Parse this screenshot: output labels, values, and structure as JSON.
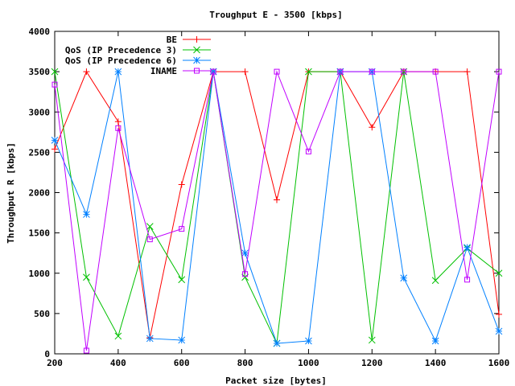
{
  "chart_data": {
    "type": "line",
    "title": "Troughput E - 3500 [kbps]",
    "xlabel": "Packet size [bytes]",
    "ylabel": "Throughput R [kbps]",
    "xlim": [
      200,
      1600
    ],
    "ylim": [
      0,
      4000
    ],
    "xticks": [
      200,
      400,
      600,
      800,
      1000,
      1200,
      1400,
      1600
    ],
    "yticks": [
      0,
      500,
      1000,
      1500,
      2000,
      2500,
      3000,
      3500,
      4000
    ],
    "grid": false,
    "legend_position": "top-left",
    "x": [
      200,
      300,
      400,
      500,
      600,
      700,
      800,
      900,
      1000,
      1100,
      1200,
      1300,
      1400,
      1500,
      1600
    ],
    "series": [
      {
        "name": "BE",
        "color": "#ff0000",
        "marker": "plus",
        "values": [
          2540,
          3500,
          2880,
          200,
          2100,
          3500,
          3500,
          1910,
          3500,
          3500,
          2810,
          3500,
          3500,
          3500,
          490
        ]
      },
      {
        "name": "QoS (IP Precedence 3)",
        "color": "#00c000",
        "marker": "cross",
        "values": [
          3500,
          950,
          220,
          1580,
          920,
          3500,
          950,
          130,
          3500,
          3500,
          170,
          3500,
          910,
          1310,
          1000
        ]
      },
      {
        "name": "QoS (IP Precedence 6)",
        "color": "#0080ff",
        "marker": "star",
        "values": [
          2650,
          1730,
          3500,
          190,
          170,
          3500,
          1250,
          130,
          160,
          3500,
          3500,
          940,
          160,
          1320,
          280
        ]
      },
      {
        "name": "INAME",
        "color": "#c000ff",
        "marker": "square",
        "values": [
          3340,
          40,
          2800,
          1420,
          1550,
          3500,
          990,
          3500,
          2510,
          3500,
          3500,
          3500,
          3500,
          920,
          3500
        ]
      }
    ]
  }
}
